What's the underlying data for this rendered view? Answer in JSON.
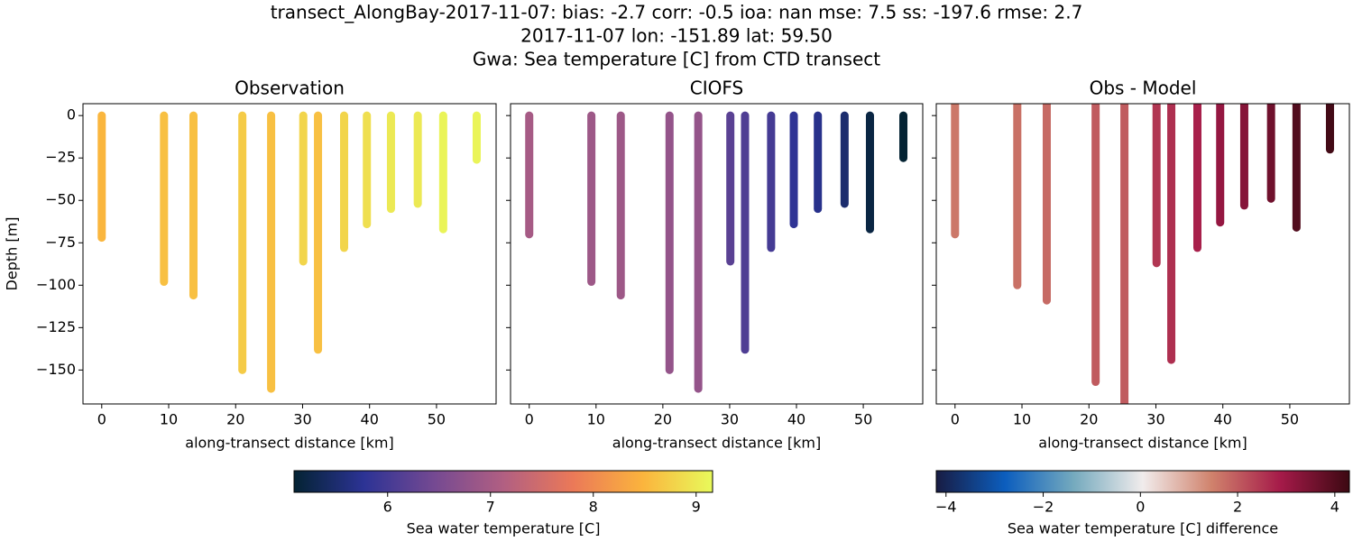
{
  "suptitle": [
    "transect_AlongBay-2017-11-07: bias: -2.7  corr: -0.5  ioa: nan  mse: 7.5  ss: -197.6  rmse: 2.7",
    "2017-11-07 lon: -151.89 lat: 59.50",
    "Gwa: Sea temperature [C] from CTD transect"
  ],
  "colorbars": [
    {
      "label": "Sea water temperature [C]",
      "lim": [
        5.09,
        9.16
      ],
      "ticks": [
        6,
        7,
        8,
        9
      ],
      "colors": [
        "#042333",
        "#2c3395",
        "#744992",
        "#b15f82",
        "#eb7958",
        "#fbb43d",
        "#e8fa5b"
      ]
    },
    {
      "label": "Sea water temperature [C] difference",
      "lim": [
        -4.2,
        4.3
      ],
      "ticks": [
        {
          "value": -4,
          "label": "−4"
        },
        {
          "value": -2,
          "label": "−2"
        },
        0,
        2,
        4
      ],
      "colors": [
        "#181c43",
        "#0c5ebe",
        "#75aabe",
        "#f1ecec",
        "#d0826c",
        "#a51a49",
        "#3c0912"
      ]
    }
  ],
  "chart_data": [
    {
      "type": "profile",
      "title": "Observation",
      "xlabel": "along-transect distance [km]",
      "ylabel": "Depth [m]",
      "colorbar": 0,
      "show_ytick_labels": true,
      "x": [
        0,
        9.3,
        13.7,
        21.0,
        25.3,
        30.1,
        32.3,
        36.2,
        39.6,
        43.2,
        47.2,
        51.0,
        56.0
      ],
      "depth_top": [
        0,
        0,
        0,
        0,
        0,
        0,
        0,
        0,
        0,
        0,
        0,
        0,
        0
      ],
      "depth_max": [
        -72,
        -98,
        -106,
        -150,
        -161,
        -86,
        -138,
        -78,
        -64,
        -55,
        -52,
        -67,
        -26
      ],
      "values": [
        8.5,
        8.6,
        8.6,
        8.7,
        8.6,
        8.8,
        8.6,
        8.8,
        8.9,
        9.0,
        9.0,
        9.1,
        9.1
      ],
      "xlim": [
        -2.8,
        58.9
      ],
      "xticks": [
        0,
        10,
        20,
        30,
        40,
        50
      ],
      "ylim": [
        -170,
        7
      ],
      "yticks": [
        {
          "value": -150,
          "label": "−150"
        },
        {
          "value": -125,
          "label": "−125"
        },
        {
          "value": -100,
          "label": "−100"
        },
        {
          "value": -75,
          "label": "−75"
        },
        {
          "value": -50,
          "label": "−50"
        },
        {
          "value": -25,
          "label": "−25"
        },
        0
      ]
    },
    {
      "type": "profile",
      "title": "CIOFS",
      "xlabel": "along-transect distance [km]",
      "colorbar": 0,
      "show_ytick_labels": false,
      "x": [
        0,
        9.3,
        13.7,
        21.0,
        25.3,
        30.1,
        32.3,
        36.2,
        39.6,
        43.2,
        47.2,
        51.0,
        56.0
      ],
      "depth_top": [
        0,
        0,
        0,
        0,
        0,
        0,
        0,
        0,
        0,
        0,
        0,
        0,
        0
      ],
      "depth_max": [
        -70,
        -98,
        -106,
        -150,
        -161,
        -86,
        -138,
        -78,
        -64,
        -55,
        -52,
        -67,
        -25
      ],
      "values": [
        7.0,
        6.9,
        6.9,
        6.8,
        6.8,
        6.2,
        6.1,
        6.0,
        5.8,
        5.7,
        5.5,
        5.2,
        5.0
      ],
      "xlim": [
        -2.8,
        58.9
      ],
      "xticks": [
        0,
        10,
        20,
        30,
        40,
        50
      ],
      "ylim": [
        -170,
        7
      ],
      "yticks": [
        -150,
        -125,
        -100,
        -75,
        -50,
        -25,
        0
      ]
    },
    {
      "type": "profile",
      "title": "Obs - Model",
      "xlabel": "along-transect distance [km]",
      "colorbar": 1,
      "show_ytick_labels": false,
      "x": [
        0,
        9.3,
        13.7,
        21.0,
        25.3,
        30.1,
        32.3,
        36.2,
        39.6,
        43.2,
        47.2,
        51.0,
        56.0
      ],
      "depth_top": [
        7,
        7,
        7,
        7,
        7,
        7,
        7,
        7,
        7,
        7,
        7,
        7,
        7
      ],
      "depth_max": [
        -70,
        -100,
        -109,
        -157,
        -170,
        -87,
        -144,
        -78,
        -63,
        -53,
        -49,
        -66,
        -20
      ],
      "values": [
        1.6,
        1.7,
        1.8,
        2.0,
        2.0,
        2.5,
        2.6,
        2.8,
        3.1,
        3.3,
        3.6,
        4.0,
        4.2
      ],
      "xlim": [
        -2.8,
        58.9
      ],
      "xticks": [
        0,
        10,
        20,
        30,
        40,
        50
      ],
      "ylim": [
        -170,
        7
      ],
      "yticks": [
        -150,
        -125,
        -100,
        -75,
        -50,
        -25,
        0
      ]
    }
  ]
}
